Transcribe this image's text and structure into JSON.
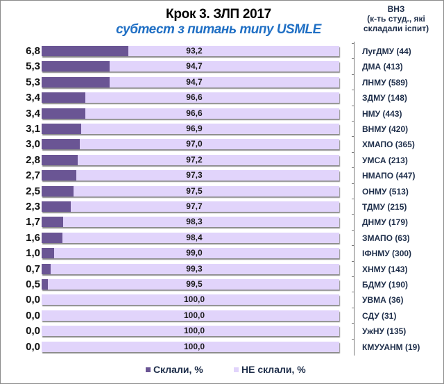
{
  "header": {
    "title": "Крок 3. ЗЛП  2017",
    "subtitle": "субтест з питань типу USMLE",
    "axis_title_line1": "ВНЗ",
    "axis_title_line2": "(к-ть студ., які",
    "axis_title_line3": "складали іспит)"
  },
  "colors": {
    "passed": "#6a5594",
    "failed": "#e1d4fb",
    "subtitle": "#1f6fc4"
  },
  "legend": {
    "passed_label": "Склали, %",
    "failed_label": "НЕ склали, %"
  },
  "rows": [
    {
      "category": "ЛугДМУ  (44)",
      "passed": "6,8",
      "failed": "93,2",
      "p": 6.8
    },
    {
      "category": "ДМА  (413)",
      "passed": "5,3",
      "failed": "94,7",
      "p": 5.3
    },
    {
      "category": "ЛНМУ  (589)",
      "passed": "5,3",
      "failed": "94,7",
      "p": 5.3
    },
    {
      "category": "ЗДМУ  (148)",
      "passed": "3,4",
      "failed": "96,6",
      "p": 3.4
    },
    {
      "category": "НМУ  (443)",
      "passed": "3,4",
      "failed": "96,6",
      "p": 3.4
    },
    {
      "category": "ВНМУ  (420)",
      "passed": "3,1",
      "failed": "96,9",
      "p": 3.1
    },
    {
      "category": "ХМАПО  (365)",
      "passed": "3,0",
      "failed": "97,0",
      "p": 3.0
    },
    {
      "category": "УМСА  (213)",
      "passed": "2,8",
      "failed": "97,2",
      "p": 2.8
    },
    {
      "category": "НМАПО  (447)",
      "passed": "2,7",
      "failed": "97,3",
      "p": 2.7
    },
    {
      "category": "ОНМУ  (513)",
      "passed": "2,5",
      "failed": "97,5",
      "p": 2.5
    },
    {
      "category": "ТДМУ  (215)",
      "passed": "2,3",
      "failed": "97,7",
      "p": 2.3
    },
    {
      "category": "ДНМУ  (179)",
      "passed": "1,7",
      "failed": "98,3",
      "p": 1.7
    },
    {
      "category": "ЗМАПО  (63)",
      "passed": "1,6",
      "failed": "98,4",
      "p": 1.6
    },
    {
      "category": "ІФНМУ  (300)",
      "passed": "1,0",
      "failed": "99,0",
      "p": 1.0
    },
    {
      "category": "ХНМУ  (143)",
      "passed": "0,7",
      "failed": "99,3",
      "p": 0.7
    },
    {
      "category": "БДМУ  (190)",
      "passed": "0,5",
      "failed": "99,5",
      "p": 0.5
    },
    {
      "category": "УВМА  (36)",
      "passed": "0,0",
      "failed": "100,0",
      "p": 0.0
    },
    {
      "category": "СДУ  (31)",
      "passed": "0,0",
      "failed": "100,0",
      "p": 0.0
    },
    {
      "category": "УжНУ  (135)",
      "passed": "0,0",
      "failed": "100,0",
      "p": 0.0
    },
    {
      "category": "КМУУАНМ  (19)",
      "passed": "0,0",
      "failed": "100,0",
      "p": 0.0
    }
  ],
  "chart_data": {
    "type": "bar",
    "orientation": "horizontal",
    "stacked": true,
    "title": "Крок 3. ЗЛП  2017",
    "subtitle": "субтест з питань типу USMLE",
    "xlabel": "",
    "ylabel": "ВНЗ (к-ть студ., які складали іспит)",
    "xlim": [
      0,
      100
    ],
    "grid": false,
    "legend_position": "bottom",
    "categories": [
      "ЛугДМУ (44)",
      "ДМА (413)",
      "ЛНМУ (589)",
      "ЗДМУ (148)",
      "НМУ (443)",
      "ВНМУ (420)",
      "ХМАПО (365)",
      "УМСА (213)",
      "НМАПО (447)",
      "ОНМУ (513)",
      "ТДМУ (215)",
      "ДНМУ (179)",
      "ЗМАПО (63)",
      "ІФНМУ (300)",
      "ХНМУ (143)",
      "БДМУ (190)",
      "УВМА (36)",
      "СДУ (31)",
      "УжНУ (135)",
      "КМУУАНМ (19)"
    ],
    "series": [
      {
        "name": "Склали, %",
        "color": "#6a5594",
        "values": [
          6.8,
          5.3,
          5.3,
          3.4,
          3.4,
          3.1,
          3.0,
          2.8,
          2.7,
          2.5,
          2.3,
          1.7,
          1.6,
          1.0,
          0.7,
          0.5,
          0.0,
          0.0,
          0.0,
          0.0
        ]
      },
      {
        "name": "НЕ склали, %",
        "color": "#e1d4fb",
        "values": [
          93.2,
          94.7,
          94.7,
          96.6,
          96.6,
          96.9,
          97.0,
          97.2,
          97.3,
          97.5,
          97.7,
          98.3,
          98.4,
          99.0,
          99.3,
          99.5,
          100.0,
          100.0,
          100.0,
          100.0
        ]
      }
    ]
  }
}
